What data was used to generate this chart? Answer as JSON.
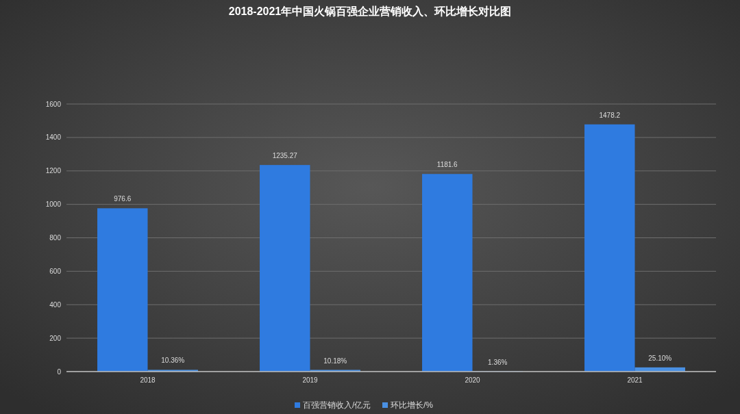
{
  "chart_data": {
    "type": "bar",
    "title": "2018-2021年中国火锅百强企业营销收入、环比增长对比图",
    "categories": [
      "2018",
      "2019",
      "2020",
      "2021"
    ],
    "series": [
      {
        "name": "百强营销收入/亿元",
        "color": "#2f7be0",
        "values": [
          976.6,
          1235.27,
          1181.6,
          1478.2
        ],
        "value_labels": [
          "976.6",
          "1235.27",
          "1181.6",
          "1478.2"
        ]
      },
      {
        "name": "环比增长/%",
        "color": "#4a90e2",
        "values": [
          10.36,
          10.18,
          1.36,
          25.1
        ],
        "value_labels": [
          "10.36%",
          "10.18%",
          "1.36%",
          "25.10%"
        ]
      }
    ],
    "ylim": [
      0,
      1600
    ],
    "yticks": [
      0,
      200,
      400,
      600,
      800,
      1000,
      1200,
      1400,
      1600
    ],
    "grid": "y",
    "legend": "bottom"
  }
}
